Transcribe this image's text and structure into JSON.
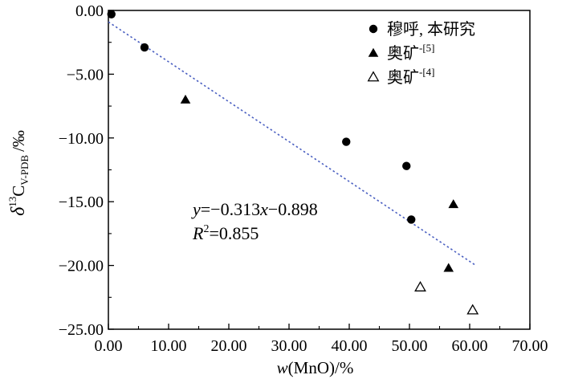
{
  "chart_data": {
    "type": "scatter",
    "xlabel_var": "w",
    "xlabel_rest": "(MnO)/%",
    "ylabel_main": "δ",
    "ylabel_sup": "13",
    "ylabel_c": "C",
    "ylabel_sub": "V-PDB",
    "ylabel_unit": "/‰",
    "xlim": [
      0,
      70
    ],
    "ylim": [
      -25,
      0
    ],
    "x_ticks": [
      {
        "value": 0,
        "label": "0.00"
      },
      {
        "value": 10,
        "label": "10.00"
      },
      {
        "value": 20,
        "label": "20.00"
      },
      {
        "value": 30,
        "label": "30.00"
      },
      {
        "value": 40,
        "label": "40.00"
      },
      {
        "value": 50,
        "label": "50.00"
      },
      {
        "value": 60,
        "label": "60.00"
      },
      {
        "value": 70,
        "label": "70.00"
      }
    ],
    "y_ticks": [
      {
        "value": 0,
        "label": "0.00"
      },
      {
        "value": -5,
        "label": "−5.00"
      },
      {
        "value": -10,
        "label": "−10.00"
      },
      {
        "value": -15,
        "label": "−15.00"
      },
      {
        "value": -20,
        "label": "−20.00"
      },
      {
        "value": -25,
        "label": "−25.00"
      }
    ],
    "grid": false,
    "legend_position": "top-right",
    "series": [
      {
        "name": "穆呼, 本研究",
        "name_sup": "",
        "marker": "filled-circle",
        "points": [
          {
            "x": 0.5,
            "y": -0.3
          },
          {
            "x": 6.0,
            "y": -2.9
          },
          {
            "x": 39.5,
            "y": -10.3
          },
          {
            "x": 49.5,
            "y": -12.2
          },
          {
            "x": 50.3,
            "y": -16.4
          }
        ]
      },
      {
        "name": "奥矿",
        "name_sup": "[5]",
        "marker": "filled-triangle",
        "points": [
          {
            "x": 12.8,
            "y": -7.0
          },
          {
            "x": 57.3,
            "y": -15.2
          },
          {
            "x": 56.5,
            "y": -20.2
          }
        ]
      },
      {
        "name": "奥矿",
        "name_sup": "[4]",
        "marker": "open-triangle",
        "points": [
          {
            "x": 51.8,
            "y": -21.7
          },
          {
            "x": 60.5,
            "y": -23.5
          }
        ]
      }
    ],
    "trendline": {
      "slope": -0.313,
      "intercept": -0.898,
      "x_range": [
        0,
        61
      ],
      "color": "#4a5fc1",
      "style": "dotted"
    },
    "equation": {
      "y_var": "y",
      "eq_rest": "=−0.313",
      "x_var": "x",
      "eq_tail": "−0.898",
      "r_var": "R",
      "r_sup": "2",
      "r_rest": "=0.855"
    }
  }
}
